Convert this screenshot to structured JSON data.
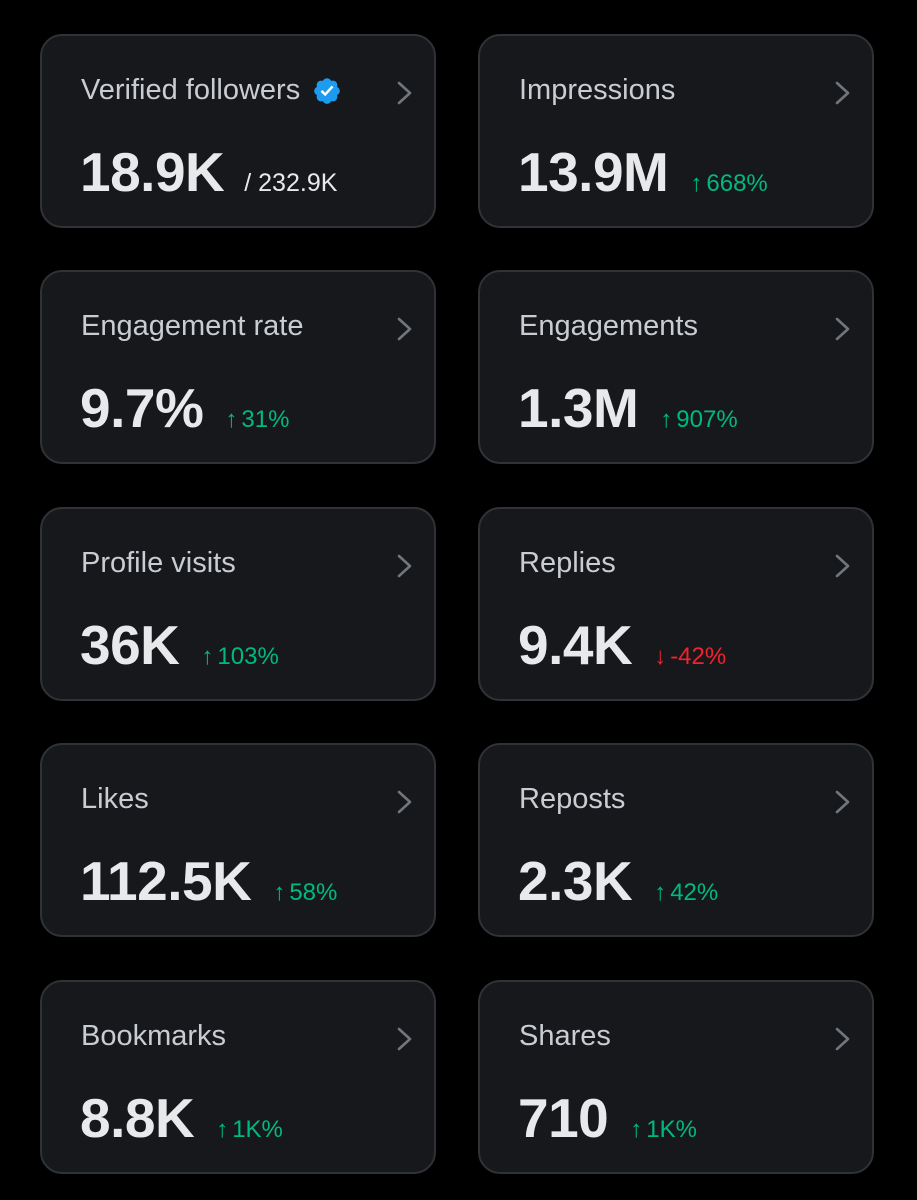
{
  "colors": {
    "background": "#000000",
    "card": "#16181c",
    "card_border": "#2f3336",
    "positive": "#00ba7c",
    "negative": "#f4212e",
    "verified_badge": "#1d9bf0"
  },
  "cards": {
    "verified_followers": {
      "title": "Verified followers",
      "value": "18.9K",
      "suffix": "/ 232.9K"
    },
    "impressions": {
      "title": "Impressions",
      "value": "13.9M",
      "change_arrow": "↑",
      "change": "668%"
    },
    "engagement_rate": {
      "title": "Engagement rate",
      "value": "9.7%",
      "change_arrow": "↑",
      "change": "31%"
    },
    "engagements": {
      "title": "Engagements",
      "value": "1.3M",
      "change_arrow": "↑",
      "change": "907%"
    },
    "profile_visits": {
      "title": "Profile visits",
      "value": "36K",
      "change_arrow": "↑",
      "change": "103%"
    },
    "replies": {
      "title": "Replies",
      "value": "9.4K",
      "change_arrow": "↓",
      "change": "-42%"
    },
    "likes": {
      "title": "Likes",
      "value": "112.5K",
      "change_arrow": "↑",
      "change": "58%"
    },
    "reposts": {
      "title": "Reposts",
      "value": "2.3K",
      "change_arrow": "↑",
      "change": "42%"
    },
    "bookmarks": {
      "title": "Bookmarks",
      "value": "8.8K",
      "change_arrow": "↑",
      "change": "1K%"
    },
    "shares": {
      "title": "Shares",
      "value": "710",
      "change_arrow": "↑",
      "change": "1K%"
    }
  },
  "icons": {
    "verified": "verified-badge-icon",
    "chevron": "chevron-right-icon"
  }
}
